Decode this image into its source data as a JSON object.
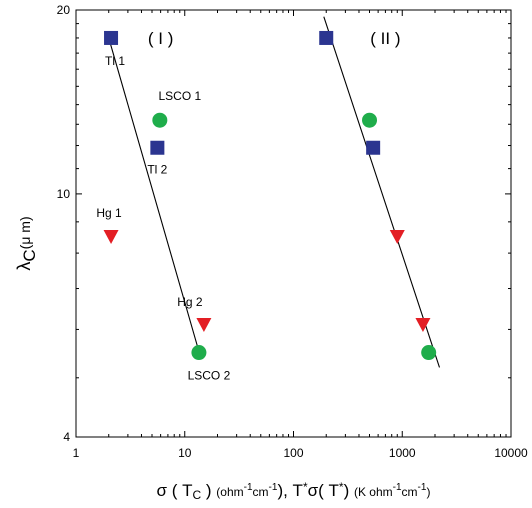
{
  "chart_data": {
    "type": "scatter",
    "x_scale": "log",
    "y_scale": "log",
    "xlim": [
      1,
      10000
    ],
    "ylim": [
      4,
      20
    ],
    "x_ticks": [
      {
        "value": 1,
        "label": "1"
      },
      {
        "value": 10,
        "label": "10"
      },
      {
        "value": 100,
        "label": "100"
      },
      {
        "value": 1000,
        "label": "1000"
      },
      {
        "value": 10000,
        "label": "10000"
      }
    ],
    "y_ticks": [
      {
        "value": 4,
        "label": "4"
      },
      {
        "value": 10,
        "label": "10"
      },
      {
        "value": 20,
        "label": "20"
      }
    ],
    "xlabel": "σ ( T_C ) (ohm⁻¹cm⁻¹), T*σ( T* ) (K ohm⁻¹cm⁻¹)",
    "ylabel": "λ_C(μ m)",
    "panel_labels": [
      {
        "text": "( I )",
        "x": 6,
        "y": 18
      },
      {
        "text": "( II )",
        "x": 700,
        "y": 18
      }
    ],
    "series": [
      {
        "group": "I",
        "points": [
          {
            "label": "Tl 1",
            "x": 2.1,
            "y": 18,
            "marker": "square",
            "color": "#2b3590"
          },
          {
            "label": "LSCO 1",
            "x": 5.9,
            "y": 13.2,
            "marker": "circle",
            "color": "#1fad4b"
          },
          {
            "label": "Tl 2",
            "x": 5.6,
            "y": 11.9,
            "marker": "square",
            "color": "#2b3590"
          },
          {
            "label": "Hg 1",
            "x": 2.1,
            "y": 8.5,
            "marker": "triangle-down",
            "color": "#e31e24"
          },
          {
            "label": "Hg 2",
            "x": 15,
            "y": 6.1,
            "marker": "triangle-down",
            "color": "#e31e24"
          },
          {
            "label": "LSCO 2",
            "x": 13.5,
            "y": 5.5,
            "marker": "circle",
            "color": "#1fad4b"
          }
        ],
        "fit_line": [
          {
            "x": 2.0,
            "y": 18
          },
          {
            "x": 13.2,
            "y": 5.6
          }
        ]
      },
      {
        "group": "II",
        "points": [
          {
            "x": 200,
            "y": 18,
            "marker": "square",
            "color": "#2b3590"
          },
          {
            "x": 500,
            "y": 13.2,
            "marker": "circle",
            "color": "#1fad4b"
          },
          {
            "x": 540,
            "y": 11.9,
            "marker": "square",
            "color": "#2b3590"
          },
          {
            "x": 900,
            "y": 8.5,
            "marker": "triangle-down",
            "color": "#e31e24"
          },
          {
            "x": 1550,
            "y": 6.1,
            "marker": "triangle-down",
            "color": "#e31e24"
          },
          {
            "x": 1750,
            "y": 5.5,
            "marker": "circle",
            "color": "#1fad4b"
          }
        ],
        "fit_line": [
          {
            "x": 190,
            "y": 19.5
          },
          {
            "x": 2200,
            "y": 5.2
          }
        ]
      }
    ],
    "grid": false,
    "legend": "none"
  }
}
